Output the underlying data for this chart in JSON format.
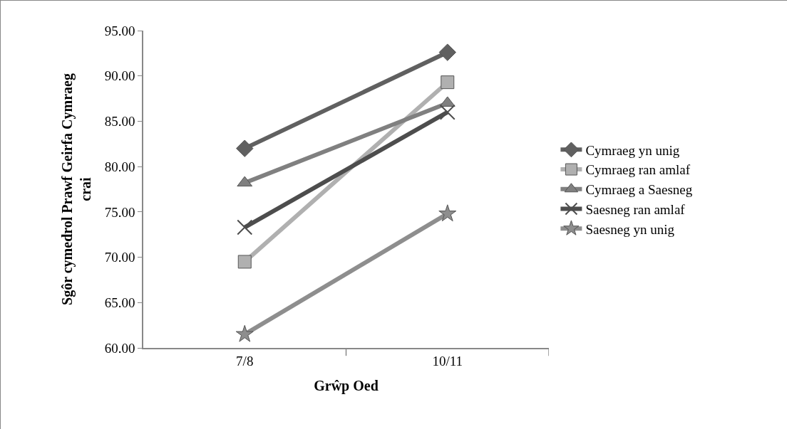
{
  "chart_data": {
    "type": "line",
    "xlabel": "Grŵp Oed",
    "ylabel": "Sgôr cymedrol Prawf Geirfa Cymraeg crai",
    "categories": [
      "7/8",
      "10/11"
    ],
    "series": [
      {
        "name": "Cymraeg yn unig",
        "color": "#606060",
        "marker": "diamond",
        "values": [
          82.0,
          92.6
        ]
      },
      {
        "name": "Cymraeg ran amlaf",
        "color": "#b0b0b0",
        "marker": "square",
        "values": [
          69.5,
          89.3
        ]
      },
      {
        "name": "Cymraeg a Saesneg",
        "color": "#808080",
        "marker": "triangle",
        "values": [
          78.2,
          87.0
        ]
      },
      {
        "name": "Saesneg ran amlaf",
        "color": "#4d4d4d",
        "marker": "cross",
        "values": [
          73.3,
          86.0
        ]
      },
      {
        "name": "Saesneg yn unig",
        "color": "#8e8e8e",
        "marker": "star",
        "values": [
          61.5,
          74.8
        ]
      }
    ],
    "ylim": [
      60,
      95
    ],
    "yticks": [
      {
        "value": 60,
        "label": "60.00"
      },
      {
        "value": 65,
        "label": "65.00"
      },
      {
        "value": 70,
        "label": "70.00"
      },
      {
        "value": 75,
        "label": "75.00"
      },
      {
        "value": 80,
        "label": "80.00"
      },
      {
        "value": 85,
        "label": "85.00"
      },
      {
        "value": 90,
        "label": "90.00"
      },
      {
        "value": 95,
        "label": "95.00"
      }
    ],
    "grid": false,
    "legend": "right",
    "line_style": "solid"
  }
}
